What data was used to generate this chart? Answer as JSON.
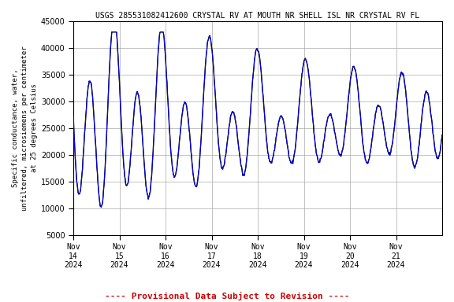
{
  "title": "USGS 285531082412600 CRYSTAL RV AT MOUTH NR SHELL ISL NR CRYSTAL RV FL",
  "ylabel": "Specific conductance, water,\nunfiltered, microsiemens per centimeter\nat 25 degrees Celsius",
  "provisional_text": "---- Provisional Data Subject to Revision ----",
  "ylim": [
    5000,
    45000
  ],
  "yticks": [
    5000,
    10000,
    15000,
    20000,
    25000,
    30000,
    35000,
    40000,
    45000
  ],
  "xtick_labels": [
    "Nov\n14\n2024",
    "Nov\n15\n2024",
    "Nov\n16\n2024",
    "Nov\n17\n2024",
    "Nov\n18\n2024",
    "Nov\n19\n2024",
    "Nov\n20\n2024",
    "Nov\n21\n2024"
  ],
  "line_color": "#0000ff",
  "background_color": "#ffffff",
  "grid_color": "#aaaaaa",
  "title_fontsize": 7,
  "label_fontsize": 6.5,
  "tick_fontsize": 7,
  "provisional_color": "#cc0000",
  "provisional_fontsize": 8
}
